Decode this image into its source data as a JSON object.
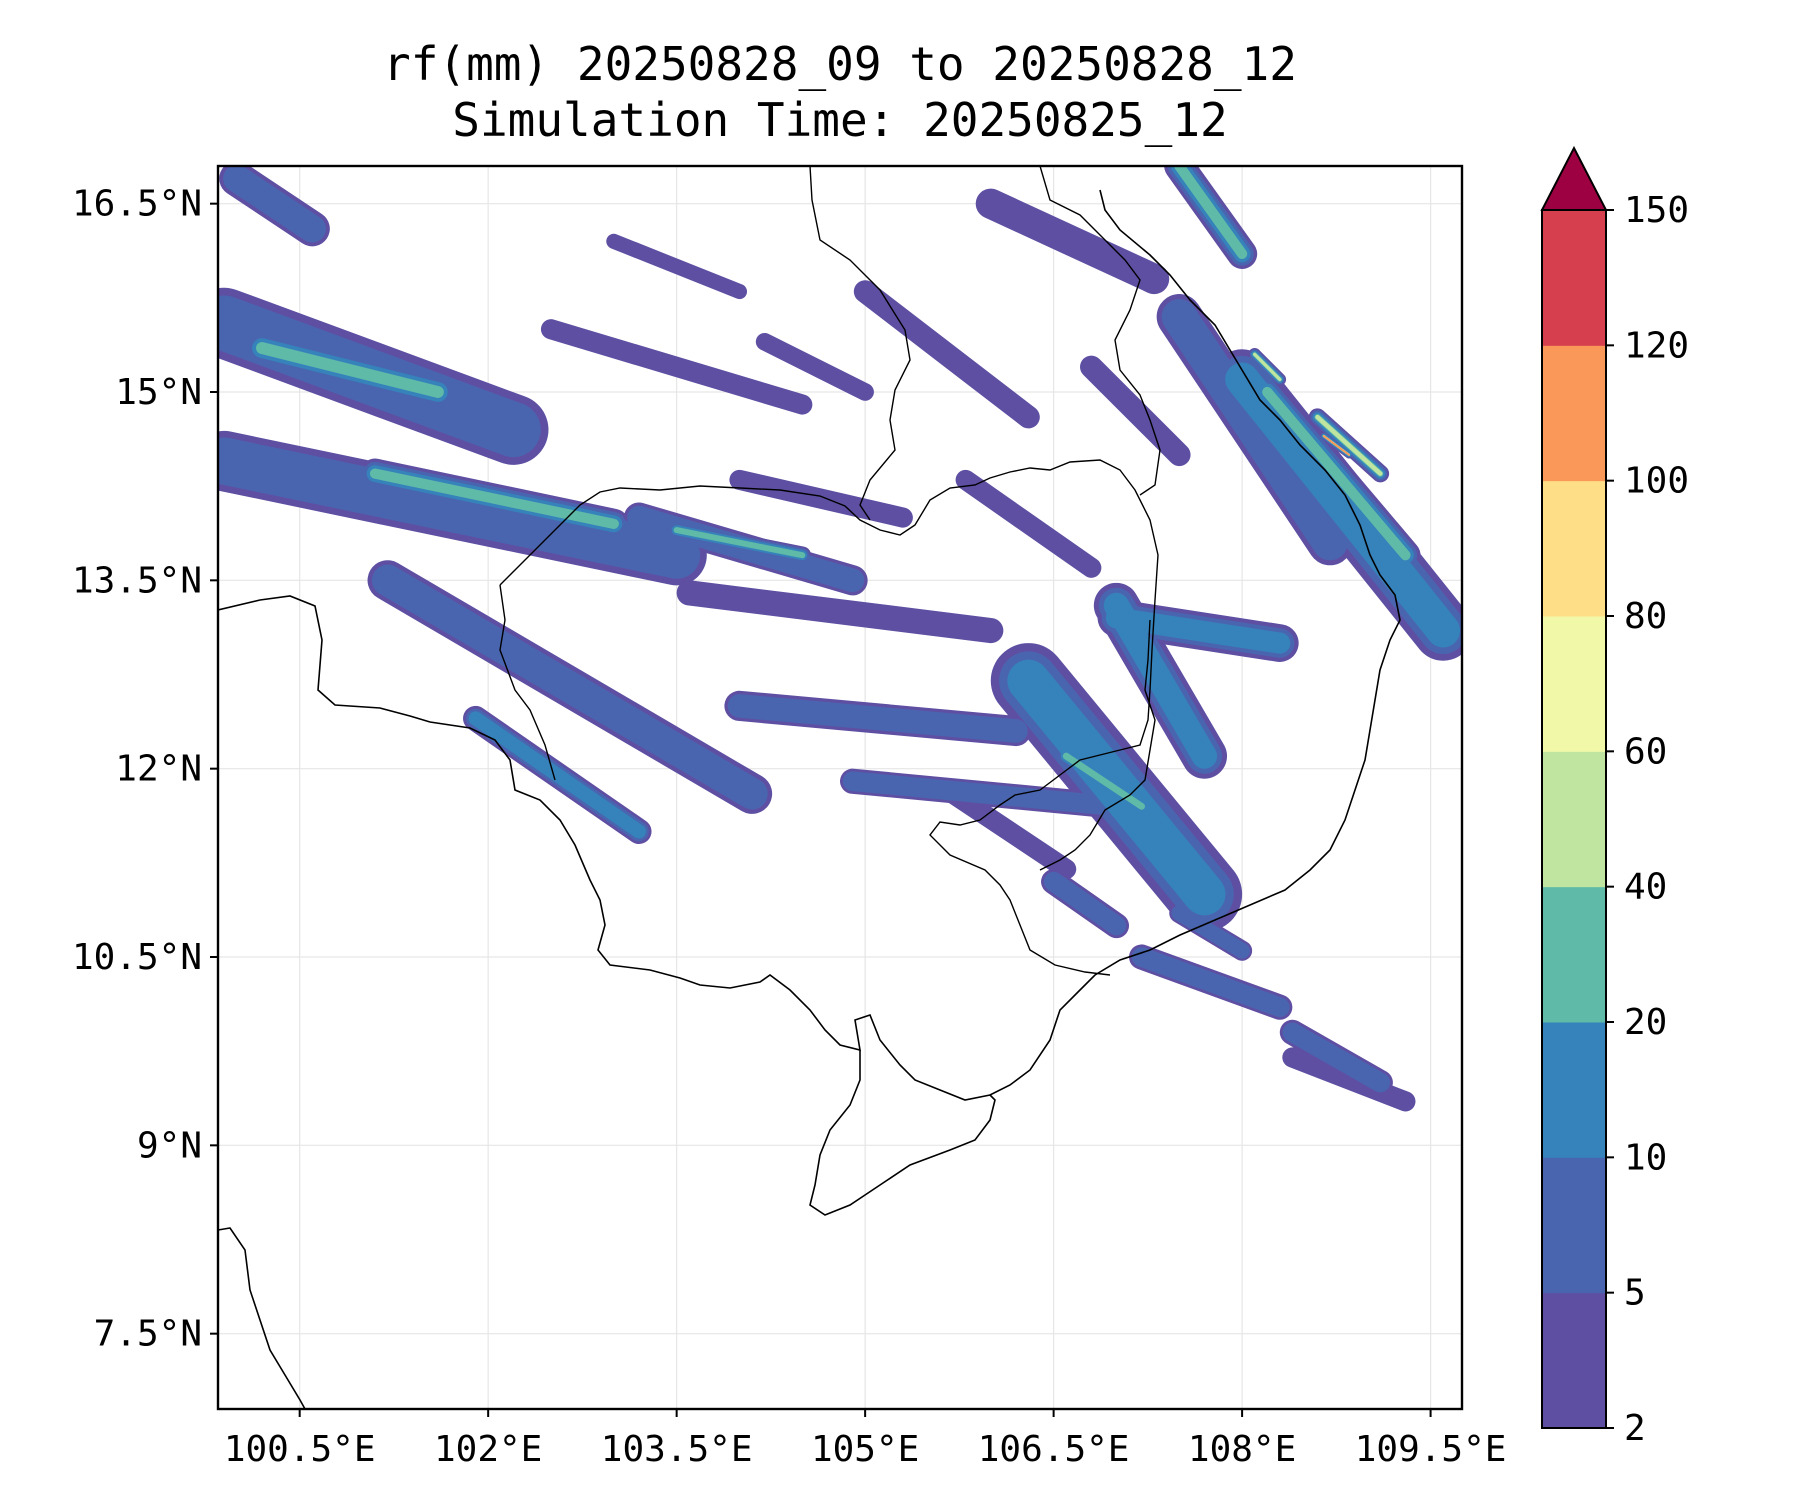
{
  "title": {
    "line1": "rf(mm) 20250828_09 to 20250828_12",
    "line2": "Simulation Time: 20250825_12"
  },
  "axes": {
    "lon_min": 99.85,
    "lon_max": 109.75,
    "lat_min": 6.9,
    "lat_max": 16.8,
    "x_ticks": [
      {
        "value": 100.5,
        "label": "100.5°E"
      },
      {
        "value": 102.0,
        "label": "102°E"
      },
      {
        "value": 103.5,
        "label": "103.5°E"
      },
      {
        "value": 105.0,
        "label": "105°E"
      },
      {
        "value": 106.5,
        "label": "106.5°E"
      },
      {
        "value": 108.0,
        "label": "108°E"
      },
      {
        "value": 109.5,
        "label": "109.5°E"
      }
    ],
    "y_ticks": [
      {
        "value": 7.5,
        "label": "7.5°N"
      },
      {
        "value": 9.0,
        "label": "9°N"
      },
      {
        "value": 10.5,
        "label": "10.5°N"
      },
      {
        "value": 12.0,
        "label": "12°N"
      },
      {
        "value": 13.5,
        "label": "13.5°N"
      },
      {
        "value": 15.0,
        "label": "15°N"
      },
      {
        "value": 16.5,
        "label": "16.5°N"
      }
    ],
    "grid": true
  },
  "colorbar": {
    "levels": [
      "2",
      "5",
      "10",
      "20",
      "40",
      "60",
      "80",
      "100",
      "120",
      "150"
    ],
    "colors": [
      "#5e4fa2",
      "#4a65b0",
      "#3682ba",
      "#5fbaa8",
      "#bfe5a0",
      "#f1f9a9",
      "#fedf88",
      "#f99858",
      "#d6404e"
    ],
    "extend_color": "#9e0142",
    "extend": "max"
  },
  "chart_data": {
    "type": "filled-contour-map",
    "variable": "rf(mm)",
    "period": "20250828_09 to 20250828_12",
    "simulation_time": "20250825_12",
    "xlim": [
      99.85,
      109.75
    ],
    "ylim": [
      6.9,
      16.8
    ],
    "rain_bands": [
      {
        "lon": [
          99.9,
          102.2
        ],
        "lat": [
          15.55,
          14.7
        ],
        "w": 0.28,
        "level": 1
      },
      {
        "lon": [
          100.2,
          101.6
        ],
        "lat": [
          15.35,
          15.0
        ],
        "w": 0.14,
        "level": 3
      },
      {
        "lon": [
          99.9,
          103.5
        ],
        "lat": [
          14.45,
          13.7
        ],
        "w": 0.24,
        "level": 1
      },
      {
        "lon": [
          101.1,
          103.0
        ],
        "lat": [
          14.35,
          13.95
        ],
        "w": 0.12,
        "level": 3
      },
      {
        "lon": [
          101.2,
          104.1
        ],
        "lat": [
          13.5,
          11.8
        ],
        "w": 0.16,
        "level": 1
      },
      {
        "lon": [
          101.9,
          103.2
        ],
        "lat": [
          12.4,
          11.5
        ],
        "w": 0.1,
        "level": 2
      },
      {
        "lon": [
          103.2,
          104.9
        ],
        "lat": [
          14.0,
          13.5
        ],
        "w": 0.12,
        "level": 1
      },
      {
        "lon": [
          103.5,
          104.5
        ],
        "lat": [
          13.9,
          13.7
        ],
        "w": 0.07,
        "level": 3
      },
      {
        "lon": [
          103.6,
          106.0
        ],
        "lat": [
          13.4,
          13.1
        ],
        "w": 0.1,
        "level": 0
      },
      {
        "lon": [
          104.0,
          106.2
        ],
        "lat": [
          12.5,
          12.3
        ],
        "w": 0.12,
        "level": 1
      },
      {
        "lon": [
          104.9,
          107.0
        ],
        "lat": [
          11.9,
          11.7
        ],
        "w": 0.1,
        "level": 1
      },
      {
        "lon": [
          106.3,
          107.7
        ],
        "lat": [
          12.7,
          11.0
        ],
        "w": 0.3,
        "level": 2
      },
      {
        "lon": [
          106.6,
          107.2
        ],
        "lat": [
          12.1,
          11.7
        ],
        "w": 0.08,
        "level": 3
      },
      {
        "lon": [
          107.0,
          107.7
        ],
        "lat": [
          13.3,
          12.1
        ],
        "w": 0.18,
        "level": 2
      },
      {
        "lon": [
          107.0,
          108.3
        ],
        "lat": [
          13.2,
          13.0
        ],
        "w": 0.15,
        "level": 2
      },
      {
        "lon": [
          107.5,
          108.7
        ],
        "lat": [
          15.6,
          13.8
        ],
        "w": 0.18,
        "level": 1
      },
      {
        "lon": [
          108.0,
          109.6
        ],
        "lat": [
          15.1,
          13.1
        ],
        "w": 0.24,
        "level": 2
      },
      {
        "lon": [
          108.2,
          109.3
        ],
        "lat": [
          15.0,
          13.7
        ],
        "w": 0.12,
        "level": 3
      },
      {
        "lon": [
          108.6,
          109.1
        ],
        "lat": [
          14.8,
          14.35
        ],
        "w": 0.07,
        "level": 4
      },
      {
        "lon": [
          108.65,
          108.85
        ],
        "lat": [
          14.65,
          14.5
        ],
        "w": 0.03,
        "level": 7
      },
      {
        "lon": [
          108.1,
          108.3
        ],
        "lat": [
          15.3,
          15.1
        ],
        "w": 0.05,
        "level": 4
      },
      {
        "lon": [
          107.5,
          108.0
        ],
        "lat": [
          16.8,
          16.1
        ],
        "w": 0.12,
        "level": 3
      },
      {
        "lon": [
          106.0,
          107.3
        ],
        "lat": [
          16.5,
          15.9
        ],
        "w": 0.12,
        "level": 0
      },
      {
        "lon": [
          107.2,
          108.3
        ],
        "lat": [
          10.5,
          10.1
        ],
        "w": 0.1,
        "level": 1
      },
      {
        "lon": [
          108.4,
          109.1
        ],
        "lat": [
          9.9,
          9.5
        ],
        "w": 0.1,
        "level": 1
      },
      {
        "lon": [
          108.4,
          109.3
        ],
        "lat": [
          9.7,
          9.35
        ],
        "w": 0.08,
        "level": 0
      },
      {
        "lon": [
          107.5,
          108.0
        ],
        "lat": [
          10.85,
          10.55
        ],
        "w": 0.08,
        "level": 1
      },
      {
        "lon": [
          106.5,
          107.0
        ],
        "lat": [
          11.1,
          10.75
        ],
        "w": 0.1,
        "level": 1
      },
      {
        "lon": [
          105.0,
          106.3
        ],
        "lat": [
          15.8,
          14.8
        ],
        "w": 0.09,
        "level": 0
      },
      {
        "lon": [
          102.5,
          104.5
        ],
        "lat": [
          15.5,
          14.9
        ],
        "w": 0.08,
        "level": 0
      },
      {
        "lon": [
          104.0,
          105.3
        ],
        "lat": [
          14.3,
          14.0
        ],
        "w": 0.08,
        "level": 0
      },
      {
        "lon": [
          105.8,
          106.8
        ],
        "lat": [
          14.3,
          13.6
        ],
        "w": 0.08,
        "level": 0
      },
      {
        "lon": [
          100.0,
          100.6
        ],
        "lat": [
          16.7,
          16.3
        ],
        "w": 0.14,
        "level": 1
      },
      {
        "lon": [
          105.7,
          106.6
        ],
        "lat": [
          11.8,
          11.2
        ],
        "w": 0.08,
        "level": 0
      },
      {
        "lon": [
          104.2,
          105.0
        ],
        "lat": [
          15.4,
          15.0
        ],
        "w": 0.07,
        "level": 0
      },
      {
        "lon": [
          103.0,
          104.0
        ],
        "lat": [
          16.2,
          15.8
        ],
        "w": 0.06,
        "level": 0
      },
      {
        "lon": [
          106.8,
          107.5
        ],
        "lat": [
          15.2,
          14.5
        ],
        "w": 0.09,
        "level": 0
      }
    ]
  }
}
